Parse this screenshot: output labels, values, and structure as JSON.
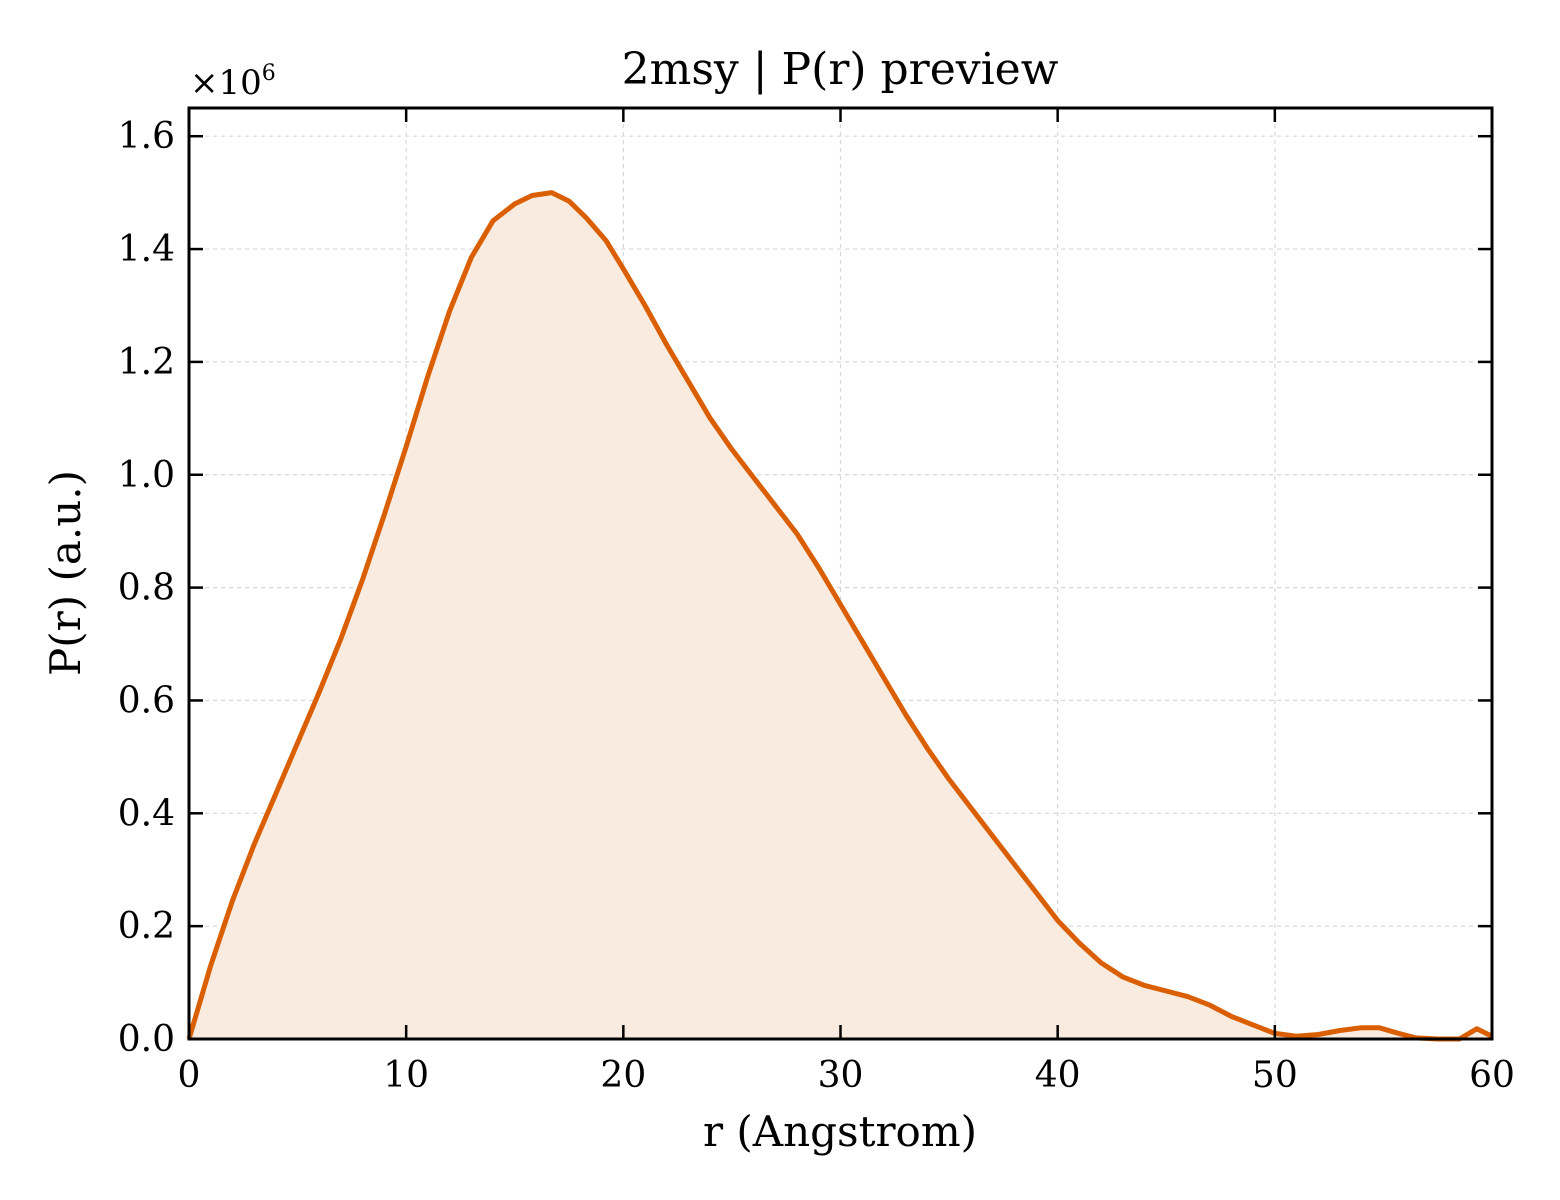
{
  "chart_data": {
    "type": "area",
    "title": "2msy | P(r) preview",
    "xlabel": "r (Angstrom)",
    "ylabel": "P(r) (a.u.)",
    "y_scale_prefix": "×10",
    "y_scale_exponent": "6",
    "xlim": [
      0,
      60
    ],
    "ylim": [
      0,
      1.65
    ],
    "x_ticks": [
      "0",
      "10",
      "20",
      "30",
      "40",
      "50",
      "60"
    ],
    "y_ticks": [
      "0.0",
      "0.2",
      "0.4",
      "0.6",
      "0.8",
      "1.0",
      "1.2",
      "1.4",
      "1.6"
    ],
    "grid": true,
    "line_color": "#d95f02",
    "fill_color": "#f9ebe0",
    "series": [
      {
        "x": [
          0,
          1,
          2,
          3,
          4,
          5,
          6,
          7,
          8,
          9,
          10,
          11,
          12,
          13,
          14,
          15,
          15.8,
          16.7,
          17.5,
          18.3,
          19.2,
          20,
          21,
          22,
          23,
          24,
          25,
          26,
          27,
          28,
          29,
          30,
          31,
          32,
          33,
          34,
          35,
          36,
          37,
          38,
          39,
          40,
          41,
          42,
          43,
          44,
          45,
          46,
          47,
          48,
          49,
          50,
          51,
          52,
          53,
          54,
          54.8,
          55.5,
          56.5,
          57.5,
          58.5,
          59.3,
          60
        ],
        "y": [
          0,
          0.13,
          0.245,
          0.345,
          0.435,
          0.525,
          0.615,
          0.71,
          0.815,
          0.93,
          1.05,
          1.175,
          1.29,
          1.385,
          1.45,
          1.48,
          1.495,
          1.5,
          1.485,
          1.455,
          1.415,
          1.365,
          1.3,
          1.23,
          1.165,
          1.1,
          1.045,
          0.995,
          0.945,
          0.895,
          0.835,
          0.77,
          0.705,
          0.64,
          0.575,
          0.515,
          0.46,
          0.41,
          0.36,
          0.31,
          0.26,
          0.21,
          0.17,
          0.135,
          0.11,
          0.095,
          0.085,
          0.075,
          0.06,
          0.04,
          0.025,
          0.01,
          0.005,
          0.008,
          0.015,
          0.02,
          0.02,
          0.012,
          0.002,
          0,
          0,
          0.018,
          0.005
        ]
      }
    ]
  }
}
